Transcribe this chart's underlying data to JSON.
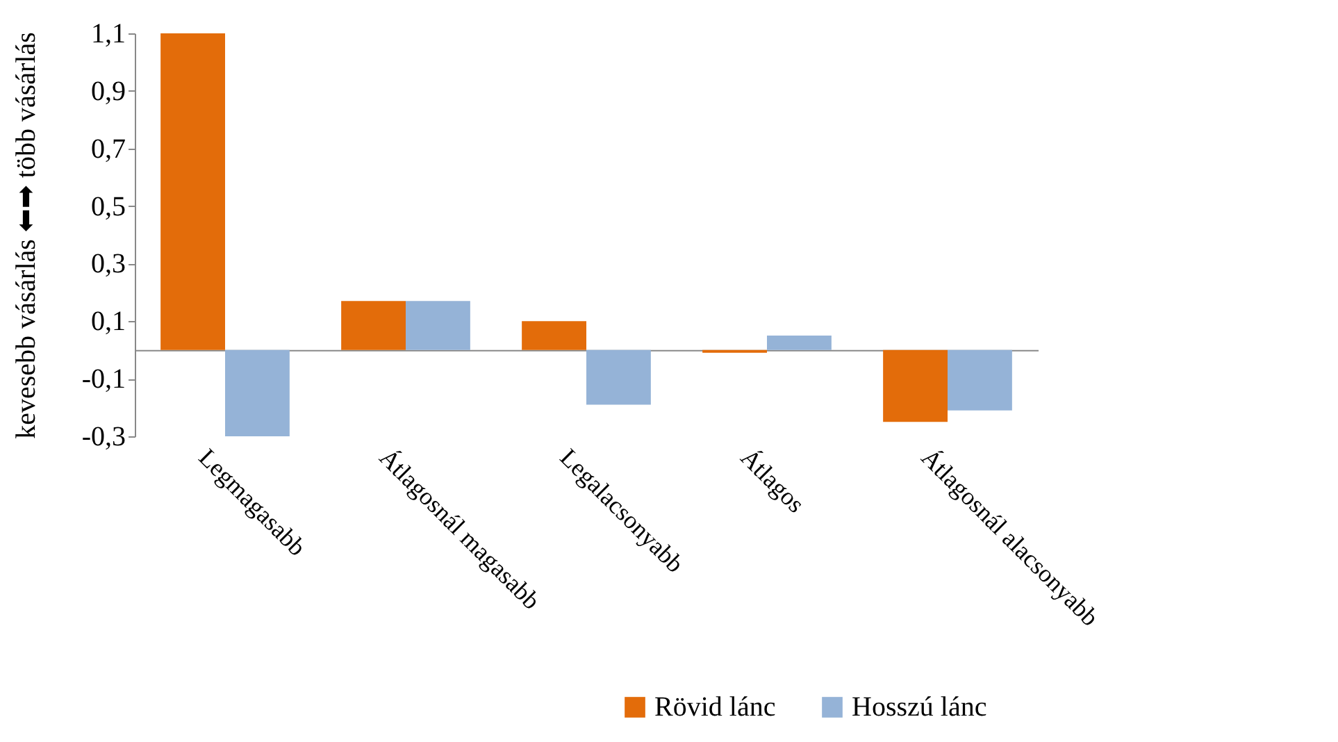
{
  "chart_data": {
    "type": "bar",
    "ylabel": "kevesebb vásárlás ⬅➡ több vásárlás",
    "categories": [
      "Legmagasabb",
      "Átlagosnál magasabb",
      "Legalacsonyabb",
      "Átlagos",
      "Átlagosnál alacsonyabb"
    ],
    "series": [
      {
        "name": "Rövid lánc",
        "color": "#e36c0a",
        "values": [
          1.1,
          0.17,
          0.1,
          -0.01,
          -0.25
        ]
      },
      {
        "name": "Hosszú lánc",
        "color": "#95b3d7",
        "values": [
          -0.3,
          0.17,
          -0.19,
          0.05,
          -0.21
        ]
      }
    ],
    "ylim": [
      -0.3,
      1.1
    ],
    "yticks": [
      {
        "value": -0.3,
        "label": "-0,3"
      },
      {
        "value": -0.1,
        "label": "-0,1"
      },
      {
        "value": 0.1,
        "label": "0,1"
      },
      {
        "value": 0.3,
        "label": "0,3"
      },
      {
        "value": 0.5,
        "label": "0,5"
      },
      {
        "value": 0.7,
        "label": "0,7"
      },
      {
        "value": 0.9,
        "label": "0,9"
      },
      {
        "value": 1.1,
        "label": "1,1"
      }
    ],
    "grid": false,
    "legend": "bottom right"
  }
}
